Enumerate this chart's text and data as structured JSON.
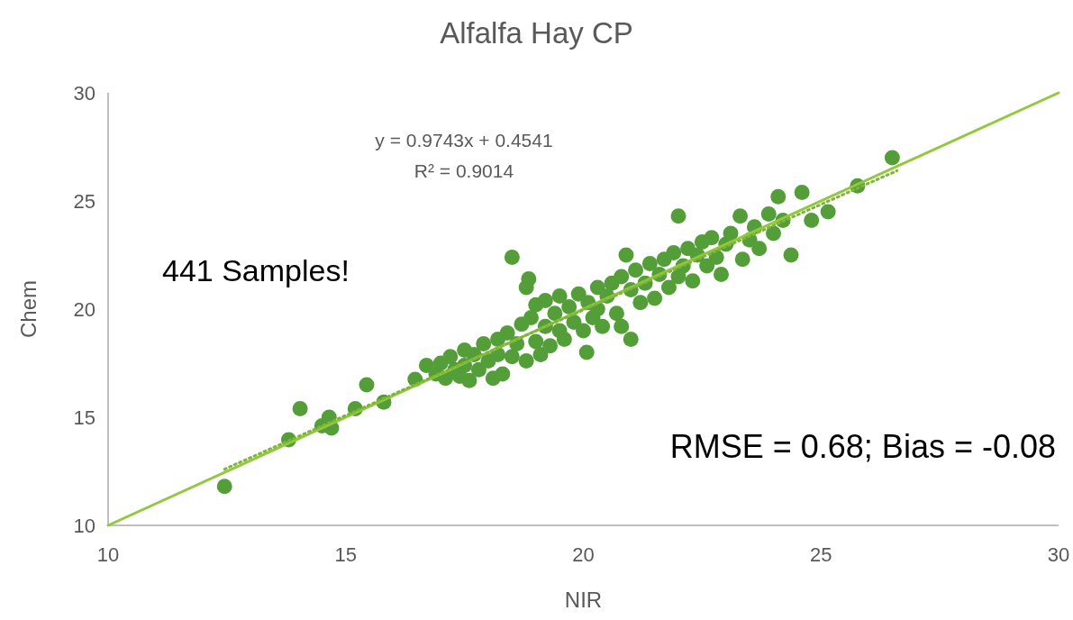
{
  "chart_data": {
    "type": "scatter",
    "title": "Alfalfa Hay CP",
    "xlabel": "NIR",
    "ylabel": "Chem",
    "xlim": [
      10,
      30
    ],
    "ylim": [
      10,
      30
    ],
    "xticks": [
      10,
      15,
      20,
      25,
      30
    ],
    "yticks": [
      10,
      15,
      20,
      25,
      30
    ],
    "grid": false,
    "annotations": [
      "441 Samples!",
      "RMSE = 0.68; Bias = -0.08",
      "y = 0.9743x + 0.4541",
      "R² = 0.9014"
    ],
    "series": [
      {
        "type": "line",
        "color": "#92c83e",
        "line_style": "solid",
        "x": [
          10,
          30
        ],
        "values": [
          10,
          30
        ]
      },
      {
        "color": "#549e39",
        "marker": "circle",
        "x": [
          12.45,
          13.8,
          14.04,
          14.5,
          14.65,
          14.7,
          15.2,
          15.44,
          15.8,
          16.46,
          16.7,
          16.9,
          17.0,
          17.1,
          17.2,
          17.3,
          17.4,
          17.5,
          17.5,
          17.6,
          17.7,
          17.8,
          17.9,
          18.0,
          18.1,
          18.2,
          18.2,
          18.3,
          18.4,
          18.5,
          18.5,
          18.6,
          18.7,
          18.8,
          18.85,
          18.8,
          18.9,
          19.0,
          19.0,
          19.1,
          19.2,
          19.2,
          19.3,
          19.4,
          19.5,
          19.5,
          19.6,
          19.7,
          19.8,
          19.9,
          20.0,
          20.07,
          20.1,
          20.2,
          20.3,
          20.3,
          20.4,
          20.5,
          20.6,
          20.7,
          20.8,
          20.8,
          20.9,
          21.0,
          21.0,
          21.1,
          21.2,
          21.3,
          21.4,
          21.5,
          21.6,
          21.7,
          21.8,
          21.9,
          22.0,
          22.0,
          22.1,
          22.2,
          22.3,
          22.4,
          22.5,
          22.6,
          22.7,
          22.8,
          22.9,
          23.0,
          23.1,
          23.3,
          23.35,
          23.5,
          23.6,
          23.7,
          23.9,
          24.0,
          24.1,
          24.2,
          24.37,
          24.6,
          24.8,
          25.15,
          25.77,
          26.5
        ],
        "values": [
          11.8,
          13.96,
          15.4,
          14.6,
          15.0,
          14.5,
          15.4,
          16.5,
          15.7,
          16.75,
          17.4,
          17.0,
          17.5,
          16.8,
          17.8,
          17.2,
          16.9,
          18.1,
          17.4,
          16.7,
          17.9,
          17.2,
          18.4,
          17.6,
          16.8,
          18.6,
          17.9,
          17.0,
          18.9,
          22.4,
          17.8,
          18.4,
          19.3,
          21.0,
          21.4,
          17.6,
          19.6,
          18.5,
          20.2,
          17.9,
          19.2,
          20.4,
          18.3,
          19.8,
          19.0,
          20.6,
          18.6,
          20.1,
          19.4,
          20.7,
          19.0,
          18.0,
          20.3,
          19.6,
          21.0,
          20.0,
          19.2,
          20.6,
          21.2,
          19.8,
          19.2,
          21.5,
          22.5,
          18.6,
          20.9,
          21.8,
          20.3,
          21.2,
          22.1,
          20.5,
          21.6,
          22.3,
          21.0,
          22.6,
          24.3,
          21.5,
          22.0,
          22.8,
          21.3,
          22.5,
          23.1,
          22.0,
          23.3,
          22.4,
          21.6,
          23.0,
          23.5,
          24.3,
          22.3,
          23.2,
          23.8,
          22.8,
          24.4,
          23.5,
          25.2,
          24.1,
          22.5,
          25.4,
          24.1,
          24.5,
          25.7,
          27.0
        ]
      },
      {
        "type": "line",
        "color": "#7fb539",
        "line_style": "dotted",
        "x": [
          12.45,
          26.6
        ],
        "values": [
          12.6,
          26.4
        ]
      }
    ]
  }
}
